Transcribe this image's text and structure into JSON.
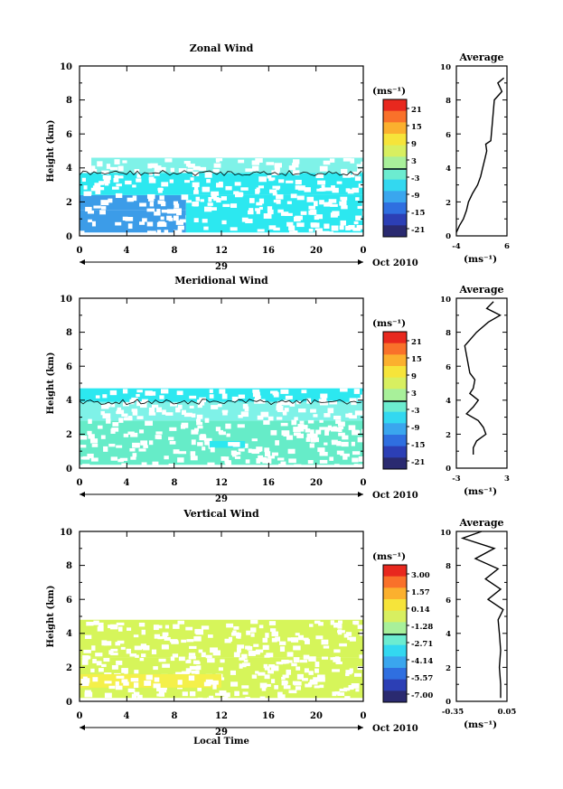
{
  "figure": {
    "x_tick_labels": [
      "0",
      "4",
      "8",
      "12",
      "16",
      "20",
      "0"
    ],
    "day_label": "29",
    "month_label": "Oct 2010",
    "xlabel": "Local Time",
    "ylabel": "Height (km)",
    "y_tick_labels": [
      "0",
      "2",
      "4",
      "6",
      "8",
      "10"
    ],
    "units": "(ms⁻¹)",
    "average_title": "Average",
    "colormap": [
      "#2a2a70",
      "#2c3fb5",
      "#2f6fe0",
      "#3aa6ee",
      "#33d8f0",
      "#6cecd0",
      "#a8f09a",
      "#d8ef60",
      "#f6e43a",
      "#fbb02e",
      "#f9712a",
      "#e8281e"
    ],
    "colors": {
      "cyan": "#2ce8f0",
      "light_cyan": "#7ff2e8",
      "aqua_green": "#66ecc8",
      "medium_blue": "#3c9ce8",
      "yellow_green": "#d6f55a",
      "yellow": "#f4f04a"
    }
  },
  "panels": [
    {
      "id": "zonal",
      "title": "Zonal Wind",
      "colorbar_ticks": [
        "21",
        "15",
        "9",
        "3",
        "-3",
        "-9",
        "-15",
        "-21"
      ],
      "avg_x_ticks": [
        "-4",
        "6"
      ],
      "avg_xlim": [
        -4,
        6
      ]
    },
    {
      "id": "meridional",
      "title": "Meridional Wind",
      "colorbar_ticks": [
        "21",
        "15",
        "9",
        "3",
        "-3",
        "-9",
        "-15",
        "-21"
      ],
      "avg_x_ticks": [
        "-3",
        "3"
      ],
      "avg_xlim": [
        -3,
        3
      ]
    },
    {
      "id": "vertical",
      "title": "Vertical Wind",
      "colorbar_ticks": [
        "3.00",
        "1.57",
        "0.14",
        "-1.28",
        "-2.71",
        "-4.14",
        "-5.57",
        "-7.00"
      ],
      "avg_x_ticks": [
        "-0.35",
        "0.05"
      ],
      "avg_xlim": [
        -0.35,
        0.05
      ]
    }
  ],
  "chart_data": [
    {
      "type": "heatmap",
      "title": "Zonal Wind",
      "xlabel": "",
      "ylabel": "Height (km)",
      "xlim": [
        0,
        24
      ],
      "ylim": [
        0,
        10
      ],
      "x_ticks": [
        0,
        4,
        8,
        12,
        16,
        20,
        24
      ],
      "color_scale": [
        -21,
        21
      ],
      "bands": [
        {
          "y_from": 0.2,
          "y_to": 1.5,
          "x_from": 0,
          "x_to": 9,
          "value": -10,
          "color": "#3c9ce8"
        },
        {
          "y_from": 1.5,
          "y_to": 2.4,
          "x_from": 0,
          "x_to": 9,
          "value": -10,
          "color": "#3c9ce8"
        },
        {
          "y_from": 0.2,
          "y_to": 2.4,
          "x_from": 9,
          "x_to": 24,
          "value": -5,
          "color": "#2ce8f0"
        },
        {
          "y_from": 2.4,
          "y_to": 3.7,
          "x_from": 0,
          "x_to": 24,
          "value": -5,
          "color": "#2ce8f0"
        },
        {
          "y_from": 3.7,
          "y_to": 4.6,
          "x_from": 1,
          "x_to": 24,
          "value": 0,
          "color": "#7ff2e8"
        }
      ],
      "average": {
        "height": [
          0.2,
          0.6,
          1.0,
          1.5,
          2.0,
          2.5,
          3.0,
          3.5,
          4.0,
          4.5,
          5.0,
          5.4,
          5.6,
          8.0,
          8.5,
          9.0,
          9.3
        ],
        "value": [
          -4,
          -3.4,
          -2.6,
          -2.0,
          -1.6,
          -0.8,
          0.2,
          0.8,
          1.2,
          1.6,
          2.0,
          1.8,
          2.8,
          3.5,
          5.0,
          4.2,
          5.4
        ]
      }
    },
    {
      "type": "heatmap",
      "title": "Meridional Wind",
      "xlabel": "",
      "ylabel": "Height (km)",
      "xlim": [
        0,
        24
      ],
      "ylim": [
        0,
        10
      ],
      "x_ticks": [
        0,
        4,
        8,
        12,
        16,
        20,
        24
      ],
      "color_scale": [
        -21,
        21
      ],
      "bands": [
        {
          "y_from": 0.2,
          "y_to": 2.8,
          "x_from": 0,
          "x_to": 24,
          "value": -1,
          "color": "#66ecc8"
        },
        {
          "y_from": 1.2,
          "y_to": 1.6,
          "x_from": 11,
          "x_to": 14,
          "value": -6,
          "color": "#2ce8f0"
        },
        {
          "y_from": 2.8,
          "y_to": 3.9,
          "x_from": 0,
          "x_to": 24,
          "value": -1,
          "color": "#7ff2e8"
        },
        {
          "y_from": 3.9,
          "y_to": 4.7,
          "x_from": 0,
          "x_to": 24,
          "value": -6,
          "color": "#2ce8f0"
        }
      ],
      "average": {
        "height": [
          0.8,
          1.2,
          1.6,
          2.0,
          2.4,
          2.8,
          3.2,
          3.6,
          4.0,
          4.4,
          4.7,
          5.2,
          5.6,
          7.2,
          8.0,
          8.6,
          9.0,
          9.4,
          9.8
        ],
        "value": [
          -1.0,
          -1.0,
          -0.6,
          0.5,
          0.2,
          -0.4,
          -1.8,
          -1.0,
          -0.4,
          -1.4,
          -1.0,
          -0.8,
          -1.4,
          -2.0,
          -0.6,
          0.8,
          2.2,
          0.6,
          1.4
        ]
      }
    },
    {
      "type": "heatmap",
      "title": "Vertical Wind",
      "xlabel": "Local Time",
      "ylabel": "Height (km)",
      "xlim": [
        0,
        24
      ],
      "ylim": [
        0,
        10
      ],
      "x_ticks": [
        0,
        4,
        8,
        12,
        16,
        20,
        24
      ],
      "color_scale": [
        -7.0,
        3.0
      ],
      "bands": [
        {
          "y_from": 0.2,
          "y_to": 2.6,
          "x_from": 0,
          "x_to": 24,
          "value": 0.4,
          "color": "#d6f55a"
        },
        {
          "y_from": 0.8,
          "y_to": 1.6,
          "x_from": 0,
          "x_to": 12,
          "value": 0.9,
          "color": "#f4f04a"
        },
        {
          "y_from": 2.6,
          "y_to": 4.8,
          "x_from": 0,
          "x_to": 24,
          "value": 0.4,
          "color": "#d6f55a"
        }
      ],
      "average": {
        "height": [
          0.2,
          1.0,
          2.0,
          3.0,
          4.0,
          4.8,
          5.4,
          6.0,
          6.6,
          7.2,
          7.8,
          8.4,
          9.0,
          9.6,
          10.0
        ],
        "value": [
          0.0,
          0.0,
          -0.01,
          0.0,
          -0.01,
          -0.02,
          0.02,
          -0.1,
          0.0,
          -0.12,
          -0.02,
          -0.2,
          -0.05,
          -0.3,
          -0.15
        ]
      }
    }
  ]
}
